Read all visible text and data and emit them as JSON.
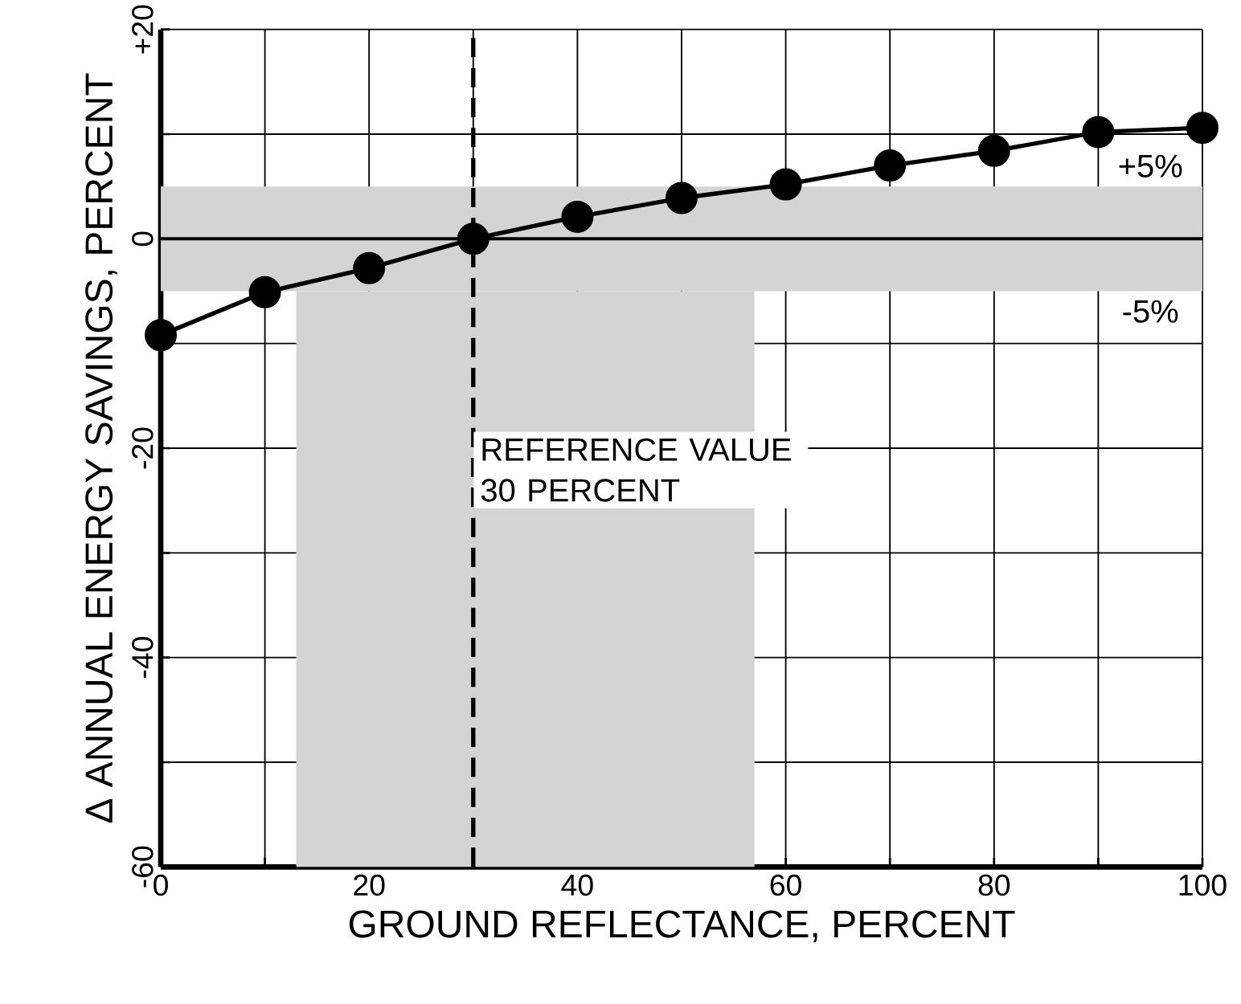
{
  "chart_data": {
    "type": "line",
    "xlabel": "GROUND REFLECTANCE, PERCENT",
    "ylabel": "Δ ANNUAL ENERGY SAVINGS, PERCENT",
    "x": [
      0,
      10,
      20,
      30,
      40,
      50,
      60,
      70,
      80,
      90,
      100
    ],
    "series": [
      {
        "color": "#000000",
        "values": [
          -9.2,
          -5.1,
          -2.8,
          0,
          2.1,
          3.9,
          5.2,
          7.0,
          8.4,
          10.2,
          10.6
        ]
      }
    ],
    "xlim": [
      0,
      100
    ],
    "ylim": [
      -60,
      20
    ],
    "xticks": [
      0,
      {
        "value": 10,
        "label": null
      },
      20,
      {
        "value": 30,
        "label": null
      },
      40,
      {
        "value": 50,
        "label": null
      },
      60,
      {
        "value": 70,
        "label": null
      },
      80,
      {
        "value": 90,
        "label": null
      },
      100
    ],
    "yticks": [
      -60,
      {
        "value": -50,
        "label": null
      },
      -40,
      {
        "value": -30,
        "label": null
      },
      -20,
      {
        "value": -10,
        "label": null
      },
      0,
      {
        "value": 10,
        "label": null
      },
      {
        "value": 20,
        "label": "+20"
      }
    ],
    "grid": true,
    "marker": "circle",
    "line_style": "solid",
    "ref_lines": [
      {
        "axis": "x",
        "value": 30,
        "label": "REFERENCE VALUE 30 PERCENT",
        "line_style": "dashed",
        "color": "#000000"
      },
      {
        "axis": "y",
        "value": 0,
        "line_style": "solid",
        "color": "#000000"
      }
    ],
    "bands": [
      {
        "axis": "y",
        "from": -5,
        "to": 5,
        "color": "#d4d4d4"
      },
      {
        "axis": "x",
        "from": 13,
        "to": 57,
        "color": "#d4d4d4"
      }
    ],
    "annotations": [
      {
        "text": "+5%",
        "x": 95,
        "y": 5
      },
      {
        "text": "-5%",
        "x": 95,
        "y": -5
      }
    ]
  }
}
